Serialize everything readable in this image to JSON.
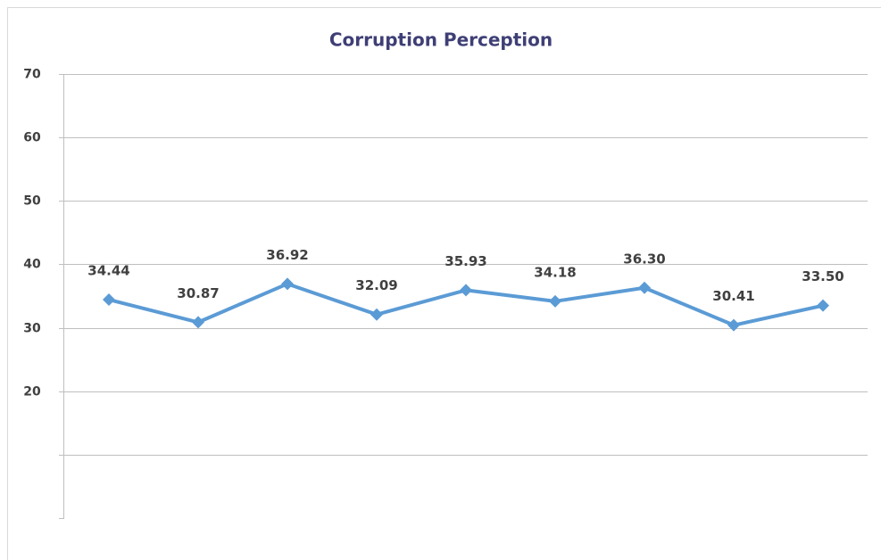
{
  "chart_data": {
    "type": "line",
    "title": "Corruption Perception",
    "categories": [
      null,
      null,
      null,
      null,
      null,
      null,
      null,
      null,
      null
    ],
    "series": [
      {
        "name": null,
        "color": "#5b9bd5",
        "values": [
          34.44,
          30.87,
          36.92,
          32.09,
          35.93,
          34.18,
          36.3,
          30.41,
          33.5
        ],
        "value_labels": [
          "34.44",
          "30.87",
          "36.92",
          "32.09",
          "35.93",
          "34.18",
          "36.30",
          "30.41",
          "33.50"
        ]
      }
    ],
    "ylim": [
      0,
      70
    ],
    "yticks": [
      {
        "value": 0,
        "label": null
      },
      {
        "value": 10,
        "label": null
      },
      20,
      30,
      40,
      50,
      60,
      70
    ],
    "grid": true
  }
}
